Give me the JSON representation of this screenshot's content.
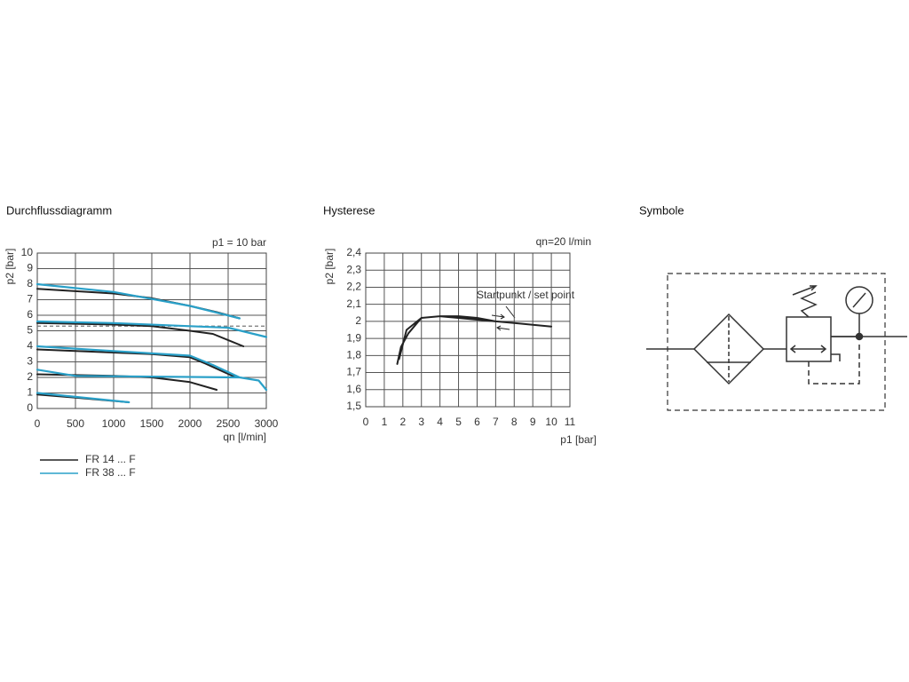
{
  "chart_data": [
    {
      "type": "line",
      "title": "Durchflussdiagramm",
      "x_label": "qn [l/min]",
      "y_label": "p2 [bar]",
      "annotation": "p1 = 10 bar",
      "xlim": [
        0,
        3000
      ],
      "xticks": [
        0,
        500,
        1000,
        1500,
        2000,
        2500,
        3000
      ],
      "ylim": [
        0,
        10
      ],
      "yticks": [
        0,
        1,
        2,
        3,
        4,
        5,
        6,
        7,
        8,
        9,
        10
      ],
      "grid": true,
      "reference_line": 5.3,
      "series": [
        {
          "name": "FR 14 ... F",
          "color": "#222222",
          "x": [
            0,
            1000,
            1500,
            2000,
            2350,
            2650,
            null,
            0,
            1000,
            1500,
            2000,
            2300,
            2700,
            null,
            0,
            1000,
            1500,
            2000,
            2200,
            2600,
            null,
            0,
            1000,
            1500,
            2000,
            2350,
            null,
            0,
            500,
            1200
          ],
          "values": [
            7.7,
            7.4,
            7.1,
            6.6,
            6.2,
            5.8,
            null,
            5.5,
            5.4,
            5.3,
            5.0,
            4.8,
            4.0,
            null,
            3.8,
            3.6,
            3.5,
            3.3,
            2.9,
            2.0,
            null,
            2.2,
            2.1,
            2.0,
            1.7,
            1.2,
            null,
            0.9,
            0.7,
            0.4
          ]
        },
        {
          "name": "FR 38 ... F",
          "color": "#2aa0c8",
          "x": [
            0,
            1000,
            2000,
            2650,
            null,
            0,
            1000,
            2000,
            2500,
            3000,
            null,
            0,
            1000,
            2000,
            2300,
            2650,
            null,
            0,
            500,
            2650,
            2900,
            3000,
            null,
            0,
            1200
          ],
          "values": [
            8.0,
            7.5,
            6.6,
            5.8,
            null,
            5.6,
            5.5,
            5.3,
            5.2,
            4.6,
            null,
            4.0,
            3.7,
            3.4,
            2.8,
            2.0,
            null,
            2.5,
            2.1,
            2.0,
            1.8,
            1.2,
            null,
            1.0,
            0.4
          ]
        }
      ]
    },
    {
      "type": "line",
      "title": "Hysterese",
      "x_label": "p1 [bar]",
      "y_label": "p2 [bar]",
      "annotation": "qn=20 l/min",
      "point_label": "Startpunkt / set point",
      "xlim": [
        0,
        11
      ],
      "xticks": [
        0,
        1,
        2,
        3,
        4,
        5,
        6,
        7,
        8,
        9,
        10,
        11
      ],
      "ylim": [
        1.5,
        2.4
      ],
      "yticks": [
        {
          "value": 1.5,
          "label": "1,5"
        },
        {
          "value": 1.6,
          "label": "1,6"
        },
        {
          "value": 1.7,
          "label": "1,7"
        },
        {
          "value": 1.8,
          "label": "1,8"
        },
        {
          "value": 1.9,
          "label": "1,9"
        },
        {
          "value": 2,
          "label": "2"
        },
        {
          "value": 2.1,
          "label": "2,1"
        },
        {
          "value": 2.2,
          "label": "2,2"
        },
        {
          "value": 2.3,
          "label": "2,3"
        },
        {
          "value": 2.4,
          "label": "2,4"
        }
      ],
      "grid": true,
      "series": [
        {
          "name": "p2",
          "color": "#222222",
          "x": [
            1.7,
            1.9,
            2.3,
            3,
            4,
            5,
            6,
            7,
            8,
            10,
            8,
            6,
            4,
            3,
            2.2,
            1.8
          ],
          "values": [
            1.75,
            1.85,
            1.93,
            2.02,
            2.03,
            2.03,
            2.02,
            2.0,
            1.99,
            1.97,
            1.99,
            2.01,
            2.03,
            2.02,
            1.95,
            1.78
          ]
        }
      ]
    }
  ],
  "symbol": {
    "title": "Symbole"
  }
}
